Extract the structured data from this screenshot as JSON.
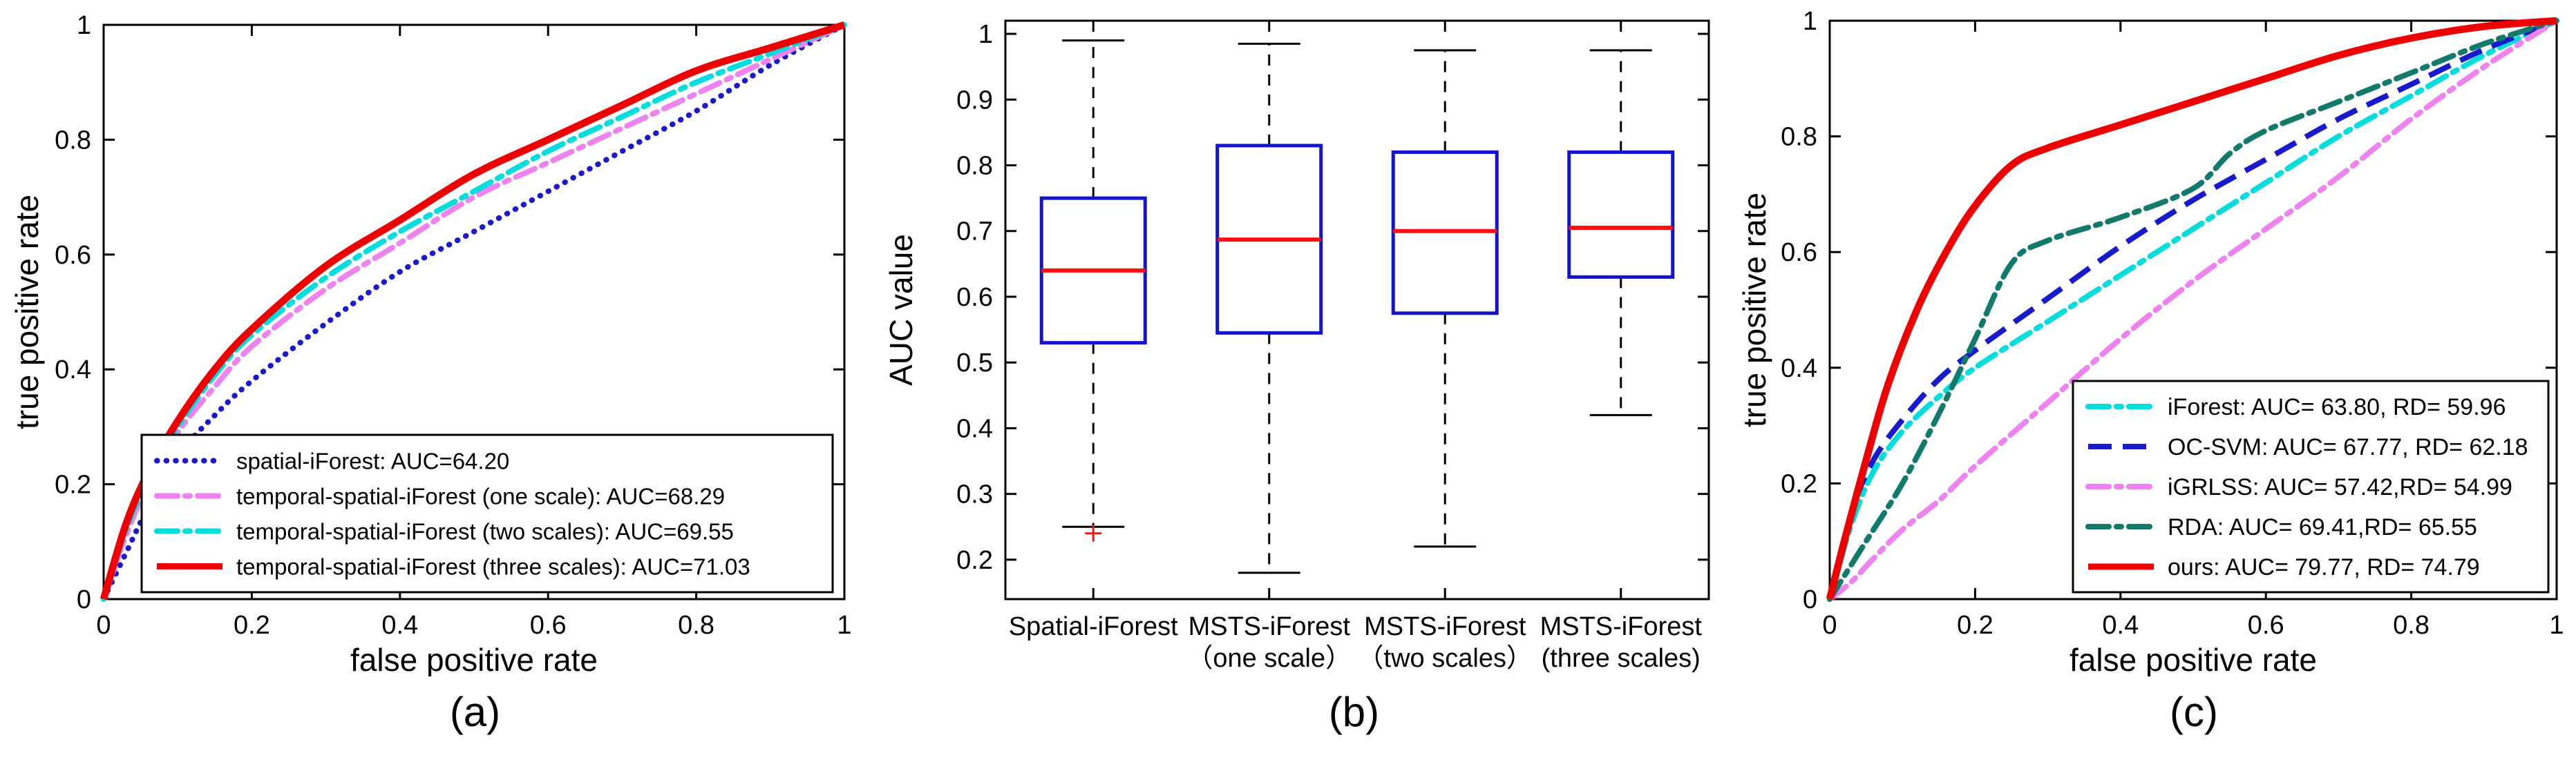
{
  "chart_data": [
    {
      "id": "a",
      "caption": "(a)",
      "type": "line",
      "title": "",
      "xlabel": "false positive rate",
      "ylabel": "true positive rate",
      "xlim": [
        0,
        1
      ],
      "ylim": [
        0,
        1
      ],
      "xticks": [
        0,
        0.2,
        0.4,
        0.6,
        0.8,
        1
      ],
      "xtick_labels": [
        "0",
        "0.2",
        "0.4",
        "0.6",
        "0.8",
        "1"
      ],
      "yticks": [
        0,
        0.2,
        0.4,
        0.6,
        0.8,
        1
      ],
      "ytick_labels": [
        "0",
        "0.2",
        "0.4",
        "0.6",
        "0.8",
        "1"
      ],
      "grid": false,
      "legend_position": "inside lower-center",
      "series": [
        {
          "name": "spatial-iForest: AUC=64.20",
          "color": "#1A1ACD",
          "style": "dotted",
          "x": [
            0,
            0.03,
            0.06,
            0.1,
            0.15,
            0.2,
            0.3,
            0.4,
            0.5,
            0.6,
            0.7,
            0.8,
            0.9,
            1
          ],
          "y": [
            0,
            0.08,
            0.16,
            0.25,
            0.32,
            0.38,
            0.48,
            0.57,
            0.64,
            0.71,
            0.78,
            0.85,
            0.93,
            1
          ]
        },
        {
          "name": "temporal-spatial-iForest (one scale): AUC=68.29",
          "color": "#EE82EE",
          "style": "dashdot",
          "x": [
            0,
            0.03,
            0.06,
            0.1,
            0.15,
            0.2,
            0.3,
            0.4,
            0.5,
            0.6,
            0.7,
            0.8,
            0.9,
            1
          ],
          "y": [
            0,
            0.11,
            0.2,
            0.29,
            0.37,
            0.44,
            0.54,
            0.62,
            0.7,
            0.76,
            0.82,
            0.88,
            0.94,
            1
          ]
        },
        {
          "name": "temporal-spatial-iForest (two scales): AUC=69.55",
          "color": "#00DDDD",
          "style": "dashdot",
          "x": [
            0,
            0.03,
            0.06,
            0.1,
            0.15,
            0.2,
            0.3,
            0.4,
            0.5,
            0.6,
            0.7,
            0.8,
            0.9,
            1
          ],
          "y": [
            0,
            0.12,
            0.21,
            0.3,
            0.39,
            0.46,
            0.56,
            0.64,
            0.71,
            0.78,
            0.84,
            0.9,
            0.95,
            1
          ]
        },
        {
          "name": "temporal-spatial-iForest (three scales): AUC=71.03",
          "color": "#EE0000",
          "style": "solid",
          "x": [
            0,
            0.03,
            0.06,
            0.1,
            0.15,
            0.2,
            0.3,
            0.4,
            0.5,
            0.6,
            0.7,
            0.8,
            0.9,
            1
          ],
          "y": [
            0,
            0.13,
            0.22,
            0.31,
            0.4,
            0.47,
            0.58,
            0.66,
            0.74,
            0.8,
            0.86,
            0.92,
            0.96,
            1
          ]
        }
      ]
    },
    {
      "id": "b",
      "caption": "(b)",
      "type": "boxplot",
      "title": "",
      "xlabel": "",
      "ylabel": "AUC value",
      "ylim": [
        0.14,
        1.02
      ],
      "yticks": [
        0.2,
        0.3,
        0.4,
        0.5,
        0.6,
        0.7,
        0.8,
        0.9,
        1
      ],
      "ytick_labels": [
        "0.2",
        "0.3",
        "0.4",
        "0.5",
        "0.6",
        "0.7",
        "0.8",
        "0.9",
        "1"
      ],
      "grid": false,
      "categories": [
        [
          "Spatial-iForest"
        ],
        [
          "MSTS-iForest",
          "（one scale）"
        ],
        [
          "MSTS-iForest",
          "（two scales）"
        ],
        [
          "MSTS-iForest",
          "(three scales)"
        ]
      ],
      "boxes": [
        {
          "whisker_low": 0.25,
          "q1": 0.53,
          "median": 0.64,
          "q3": 0.75,
          "whisker_high": 0.99,
          "outliers": [
            0.24
          ]
        },
        {
          "whisker_low": 0.18,
          "q1": 0.545,
          "median": 0.687,
          "q3": 0.83,
          "whisker_high": 0.985,
          "outliers": []
        },
        {
          "whisker_low": 0.22,
          "q1": 0.575,
          "median": 0.7,
          "q3": 0.82,
          "whisker_high": 0.975,
          "outliers": []
        },
        {
          "whisker_low": 0.42,
          "q1": 0.63,
          "median": 0.705,
          "q3": 0.82,
          "whisker_high": 0.975,
          "outliers": []
        }
      ],
      "box_color": "#1414CC",
      "median_color": "#FF1010",
      "whisker_color": "#000000",
      "outlier_color": "#FF1010"
    },
    {
      "id": "c",
      "caption": "(c)",
      "type": "line",
      "title": "",
      "xlabel": "false positive rate",
      "ylabel": "true positive rate",
      "xlim": [
        0,
        1
      ],
      "ylim": [
        0,
        1
      ],
      "xticks": [
        0,
        0.2,
        0.4,
        0.6,
        0.8,
        1
      ],
      "xtick_labels": [
        "0",
        "0.2",
        "0.4",
        "0.6",
        "0.8",
        "1"
      ],
      "yticks": [
        0,
        0.2,
        0.4,
        0.6,
        0.8,
        1
      ],
      "ytick_labels": [
        "0",
        "0.2",
        "0.4",
        "0.6",
        "0.8",
        "1"
      ],
      "grid": false,
      "legend_position": "inside lower-right",
      "series": [
        {
          "name": "iForest: AUC= 63.80, RD= 59.96",
          "color": "#00DDDD",
          "style": "dashdot",
          "x": [
            0,
            0.03,
            0.06,
            0.1,
            0.15,
            0.2,
            0.3,
            0.4,
            0.5,
            0.6,
            0.7,
            0.8,
            0.9,
            1
          ],
          "y": [
            0,
            0.13,
            0.22,
            0.29,
            0.35,
            0.4,
            0.48,
            0.56,
            0.64,
            0.72,
            0.8,
            0.87,
            0.94,
            1
          ]
        },
        {
          "name": "OC-SVM: AUC= 67.77, RD= 62.18",
          "color": "#1A1ACD",
          "style": "dashed",
          "x": [
            0,
            0.03,
            0.06,
            0.1,
            0.15,
            0.2,
            0.3,
            0.4,
            0.5,
            0.6,
            0.7,
            0.8,
            0.9,
            1
          ],
          "y": [
            0,
            0.15,
            0.24,
            0.31,
            0.38,
            0.43,
            0.52,
            0.61,
            0.69,
            0.76,
            0.83,
            0.89,
            0.95,
            1
          ]
        },
        {
          "name": "iGRLSS: AUC= 57.42,RD= 54.99",
          "color": "#EE82EE",
          "style": "dashdot",
          "x": [
            0,
            0.03,
            0.06,
            0.1,
            0.15,
            0.2,
            0.3,
            0.4,
            0.5,
            0.6,
            0.7,
            0.8,
            0.9,
            1
          ],
          "y": [
            0,
            0.03,
            0.07,
            0.12,
            0.17,
            0.23,
            0.34,
            0.45,
            0.55,
            0.64,
            0.73,
            0.83,
            0.92,
            1
          ]
        },
        {
          "name": "RDA: AUC= 69.41,RD= 65.55",
          "color": "#127A6A",
          "style": "dashdot",
          "x": [
            0,
            0.05,
            0.1,
            0.15,
            0.2,
            0.25,
            0.3,
            0.4,
            0.5,
            0.55,
            0.6,
            0.7,
            0.8,
            0.9,
            1
          ],
          "y": [
            0,
            0.1,
            0.2,
            0.32,
            0.45,
            0.58,
            0.62,
            0.66,
            0.71,
            0.77,
            0.81,
            0.86,
            0.91,
            0.96,
            1
          ]
        },
        {
          "name": "ours: AUC= 79.77, RD= 74.79",
          "color": "#EE0000",
          "style": "solid",
          "x": [
            0,
            0.02,
            0.05,
            0.08,
            0.12,
            0.16,
            0.2,
            0.25,
            0.3,
            0.4,
            0.5,
            0.6,
            0.7,
            0.8,
            0.9,
            1
          ],
          "y": [
            0,
            0.1,
            0.24,
            0.37,
            0.5,
            0.6,
            0.68,
            0.75,
            0.78,
            0.82,
            0.86,
            0.9,
            0.94,
            0.97,
            0.99,
            1
          ]
        }
      ]
    }
  ]
}
